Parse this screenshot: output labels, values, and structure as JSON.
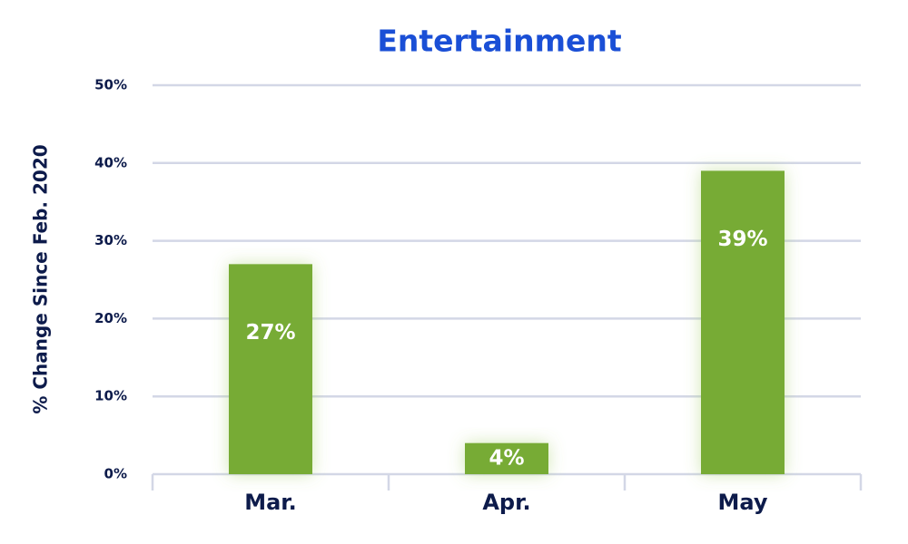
{
  "chart_data": {
    "type": "bar",
    "title": "Entertainment",
    "y_label": "% Change Since Feb. 2020",
    "categories": [
      "Mar.",
      "Apr.",
      "May"
    ],
    "values": [
      27,
      4,
      39
    ],
    "value_labels": [
      "27%",
      "4%",
      "39%"
    ],
    "color": "#77ab35",
    "ylim": [
      0,
      50
    ],
    "yticks": [
      {
        "value": 0,
        "label": "0%"
      },
      {
        "value": 10,
        "label": "10%"
      },
      {
        "value": 20,
        "label": "20%"
      },
      {
        "value": 30,
        "label": "30%"
      },
      {
        "value": 40,
        "label": "40%"
      },
      {
        "value": 50,
        "label": "50%"
      }
    ],
    "grid": true
  }
}
